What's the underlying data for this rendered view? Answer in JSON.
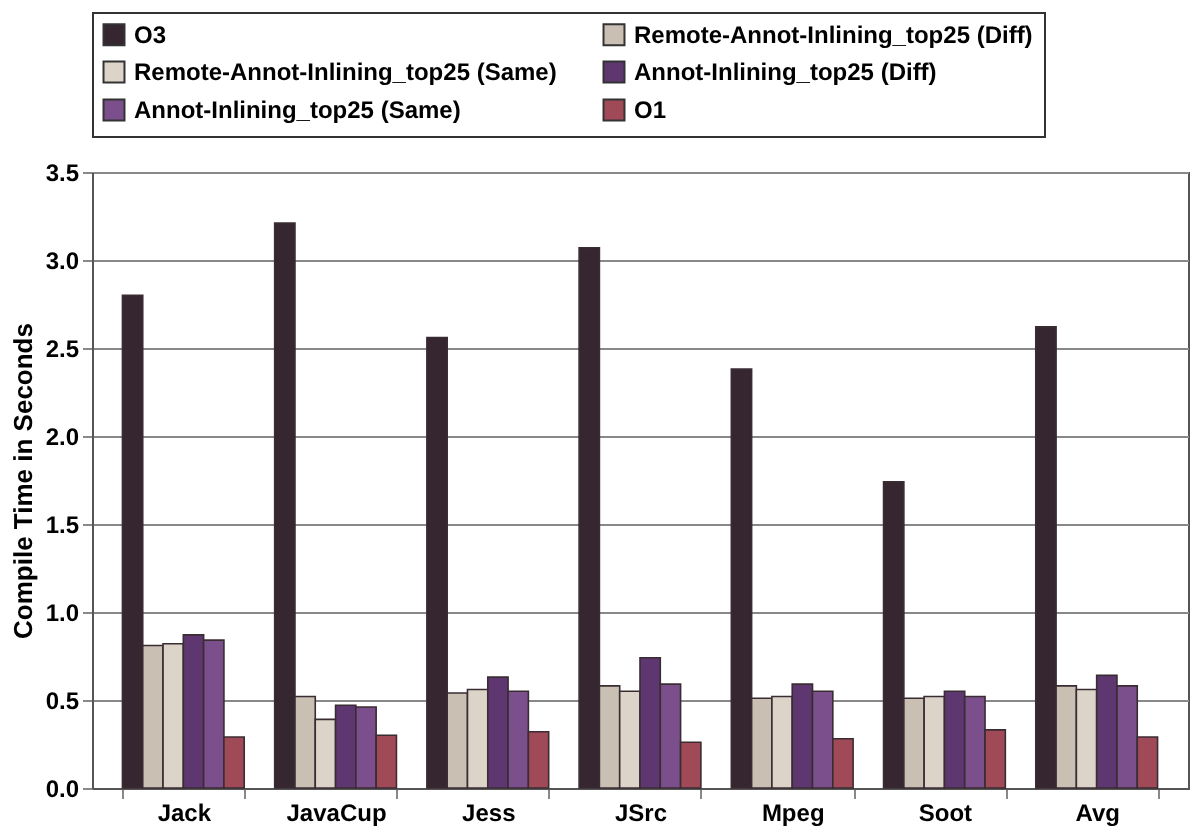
{
  "chart_data": {
    "type": "bar",
    "ylabel": "Compile Time in Seconds",
    "categories": [
      "Jack",
      "JavaCup",
      "Jess",
      "JSrc",
      "Mpeg",
      "Soot",
      "Avg"
    ],
    "series": [
      {
        "name": "O3",
        "color": "#35262f",
        "values": [
          2.8,
          3.21,
          2.56,
          3.07,
          2.38,
          1.74,
          2.62
        ]
      },
      {
        "name": "Remote-Annot-Inlining_top25 (Diff)",
        "color": "#c9bfb3",
        "values": [
          0.81,
          0.52,
          0.54,
          0.58,
          0.51,
          0.51,
          0.58
        ]
      },
      {
        "name": "Remote-Annot-Inlining_top25 (Same)",
        "color": "#ddd4c9",
        "values": [
          0.82,
          0.39,
          0.56,
          0.55,
          0.52,
          0.52,
          0.56
        ]
      },
      {
        "name": "Annot-Inlining_top25 (Diff)",
        "color": "#5e3770",
        "values": [
          0.87,
          0.47,
          0.63,
          0.74,
          0.59,
          0.55,
          0.64
        ]
      },
      {
        "name": "Annot-Inlining_top25 (Same)",
        "color": "#7b4f8c",
        "values": [
          0.84,
          0.46,
          0.55,
          0.59,
          0.55,
          0.52,
          0.58
        ]
      },
      {
        "name": "O1",
        "color": "#a04a58",
        "values": [
          0.29,
          0.3,
          0.32,
          0.26,
          0.28,
          0.33,
          0.29
        ]
      }
    ],
    "ylim": [
      0,
      3.5
    ],
    "yticks": [
      {
        "value": 0,
        "label": "0.0"
      },
      0.5,
      {
        "value": 1,
        "label": "1.0"
      },
      1.5,
      {
        "value": 2,
        "label": "2.0"
      },
      2.5,
      {
        "value": 3,
        "label": "3.0"
      },
      3.5
    ],
    "grid": "y",
    "legend": "top"
  }
}
